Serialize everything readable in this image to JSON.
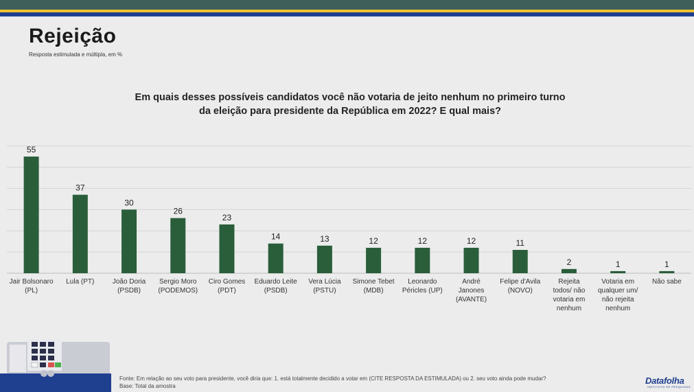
{
  "header": {
    "title": "Rejeição",
    "subtitle": "Resposta estimulada e múltipla, em %"
  },
  "question": {
    "line1": "Em quais desses possíveis candidatos você não votaria de jeito nenhum no primeiro turno",
    "line2": "da eleição para presidente da República em 2022? E qual mais?"
  },
  "chart_data": {
    "type": "bar",
    "categories": [
      [
        "Jair Bolsonaro",
        "(PL)"
      ],
      [
        "Lula (PT)"
      ],
      [
        "João Doria",
        "(PSDB)"
      ],
      [
        "Sergio Moro",
        "(PODEMOS)"
      ],
      [
        "Ciro Gomes",
        "(PDT)"
      ],
      [
        "Eduardo Leite",
        "(PSDB)"
      ],
      [
        "Vera Lúcia",
        "(PSTU)"
      ],
      [
        "Simone Tebet",
        "(MDB)"
      ],
      [
        "Leonardo",
        "Péricles (UP)"
      ],
      [
        "André",
        "Janones",
        "(AVANTE)"
      ],
      [
        "Felipe d'Avila",
        "(NOVO)"
      ],
      [
        "Rejeita",
        "todos/ não",
        "votaria em",
        "nenhum"
      ],
      [
        "Votaria em",
        "qualquer um/",
        "não rejeita",
        "nenhum"
      ],
      [
        "Não sabe"
      ]
    ],
    "values": [
      55,
      37,
      30,
      26,
      23,
      14,
      13,
      12,
      12,
      12,
      11,
      2,
      1,
      1
    ],
    "ylim": [
      0,
      60
    ],
    "grid": true,
    "colors": {
      "bar": "#2a5e3b",
      "grid": "#d4d4d4",
      "axis": "#bdbdbd"
    }
  },
  "footer": {
    "source": "Fonte: Em relação ao seu voto para presidente, você diria que: 1. está totalmente decidido a votar em (CITE RESPOSTA DA ESTIMULADA) ou 2. seu voto ainda pode mudar?",
    "base": "Base: Total da amostra",
    "brand": "Datafolha",
    "brand_tagline": "INSTITUTO DE PESQUISAS"
  },
  "icons": {
    "illustration": "ballot-machine-icon"
  }
}
